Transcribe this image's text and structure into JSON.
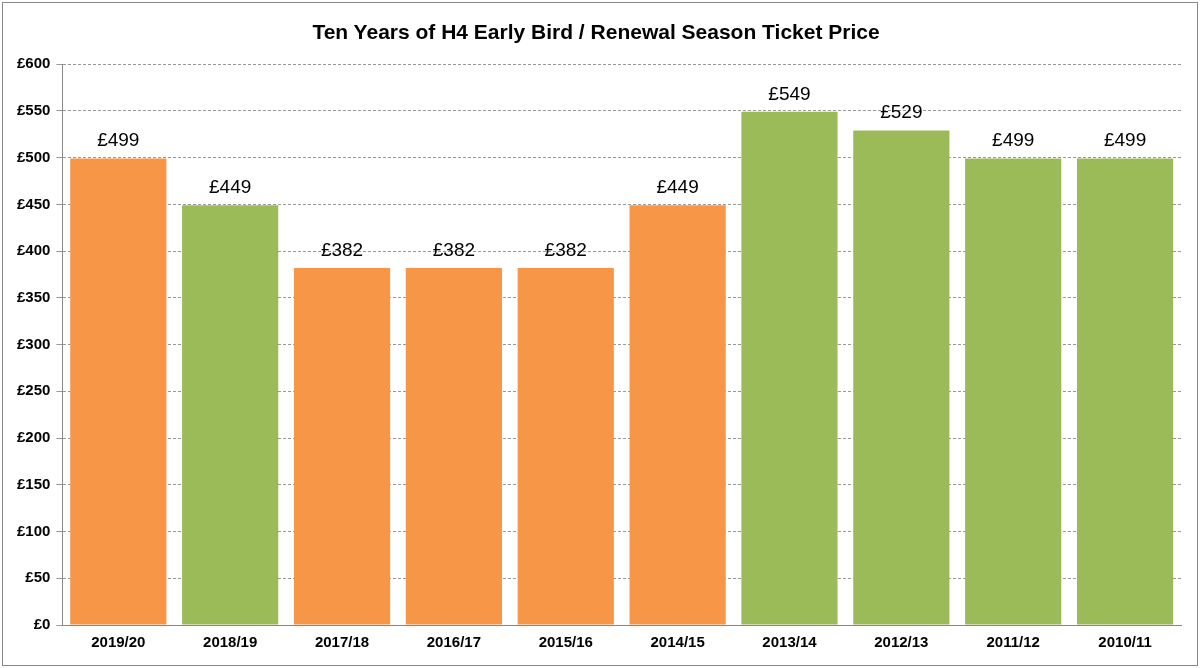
{
  "chart_data": {
    "type": "bar",
    "title": "Ten Years of H4 Early Bird / Renewal Season Ticket Price",
    "categories": [
      "2019/20",
      "2018/19",
      "2017/18",
      "2016/17",
      "2015/16",
      "2014/15",
      "2013/14",
      "2012/13",
      "2011/12",
      "2010/11"
    ],
    "values": [
      499,
      449,
      382,
      382,
      382,
      449,
      549,
      529,
      499,
      499
    ],
    "colors": [
      "#f79646",
      "#9bbb59",
      "#f79646",
      "#f79646",
      "#f79646",
      "#f79646",
      "#9bbb59",
      "#9bbb59",
      "#9bbb59",
      "#9bbb59"
    ],
    "value_labels": [
      "£499",
      "£449",
      "£382",
      "£382",
      "£382",
      "£449",
      "£549",
      "£529",
      "£499",
      "£499"
    ],
    "ylim": [
      0,
      600
    ],
    "yticks": [
      {
        "value": 0,
        "label": "£0"
      },
      {
        "value": 50,
        "label": "£50"
      },
      {
        "value": 100,
        "label": "£100"
      },
      {
        "value": 150,
        "label": "£150"
      },
      {
        "value": 200,
        "label": "£200"
      },
      {
        "value": 250,
        "label": "£250"
      },
      {
        "value": 300,
        "label": "£300"
      },
      {
        "value": 350,
        "label": "£350"
      },
      {
        "value": 400,
        "label": "£400"
      },
      {
        "value": 450,
        "label": "£450"
      },
      {
        "value": 500,
        "label": "£500"
      },
      {
        "value": 550,
        "label": "£550"
      },
      {
        "value": 600,
        "label": "£600"
      }
    ],
    "grid": "y",
    "legend": false
  }
}
